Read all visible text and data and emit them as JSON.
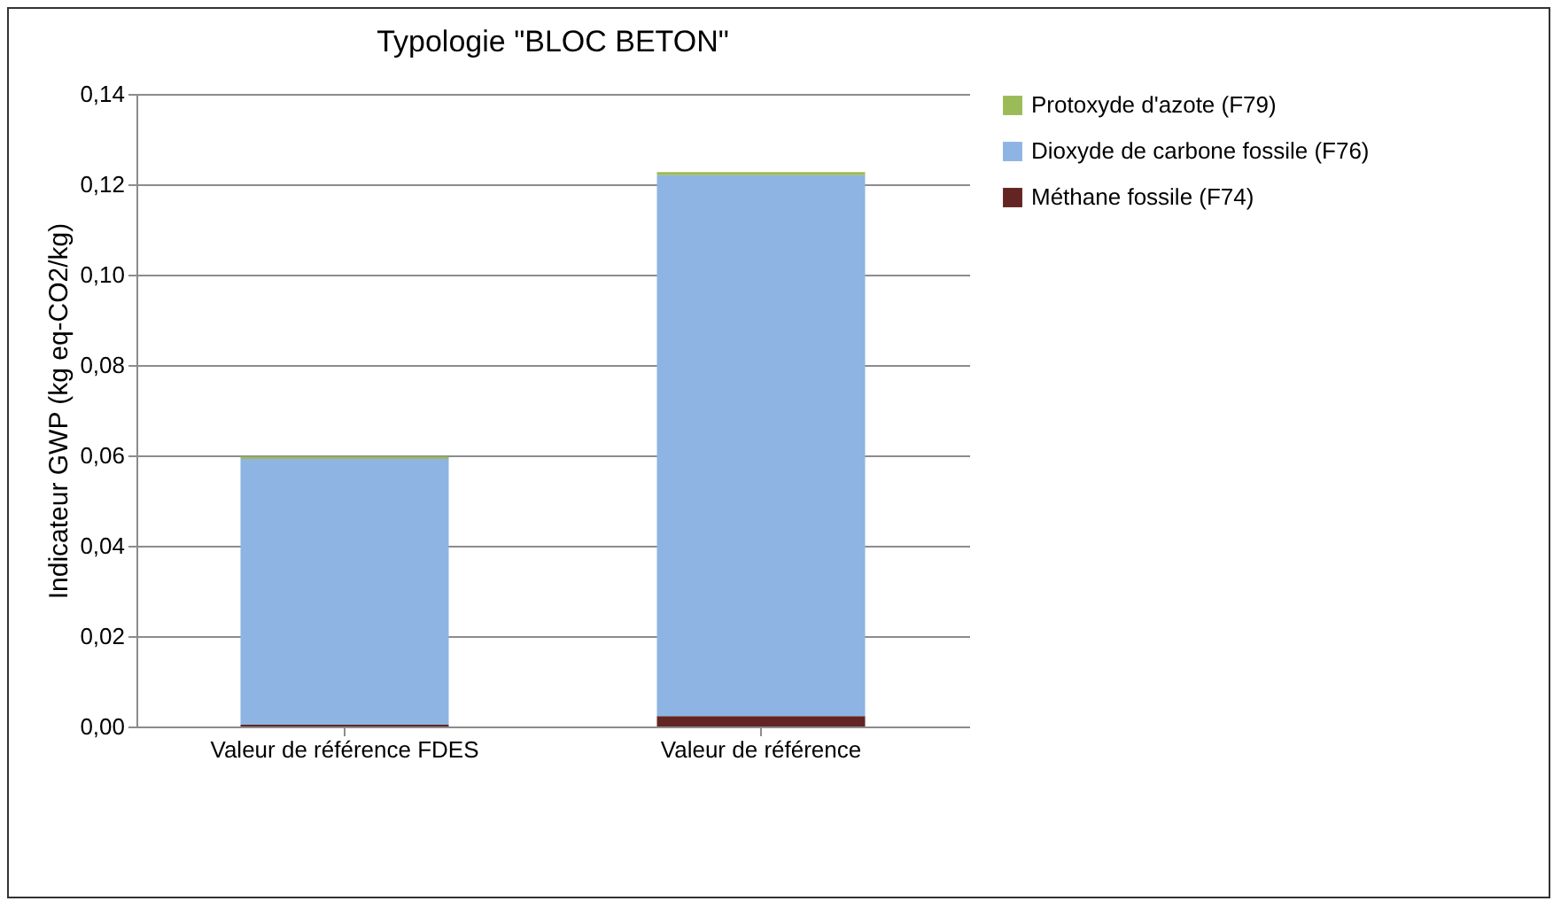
{
  "chart_data": {
    "type": "bar",
    "title": "Typologie \"BLOC BETON\"",
    "ylabel": "Indicateur GWP (kg eq-CO2/kg)",
    "categories": [
      "Valeur de référence FDES",
      "Valeur de référence"
    ],
    "stacked": true,
    "series": [
      {
        "name": "Méthane fossile (F74)",
        "color": "#632523",
        "values": [
          0.0004,
          0.0023
        ]
      },
      {
        "name": "Dioxyde de carbone fossile (F76)",
        "color": "#8eb4e3",
        "values": [
          0.0588,
          0.1197
        ]
      },
      {
        "name": "Protoxyde d'azote (F79)",
        "color": "#9bbb59",
        "values": [
          0.0005,
          0.0007
        ]
      }
    ],
    "ylim": [
      0,
      0.14
    ],
    "yticks": [
      {
        "value": 0,
        "label": "0,00"
      },
      {
        "value": 0.02,
        "label": "0,02"
      },
      {
        "value": 0.04,
        "label": "0,04"
      },
      {
        "value": 0.06,
        "label": "0,06"
      },
      {
        "value": 0.08,
        "label": "0,08"
      },
      {
        "value": 0.1,
        "label": "0,10"
      },
      {
        "value": 0.12,
        "label": "0,12"
      },
      {
        "value": 0.14,
        "label": "0,14"
      }
    ],
    "grid": "y",
    "legend": "right"
  }
}
